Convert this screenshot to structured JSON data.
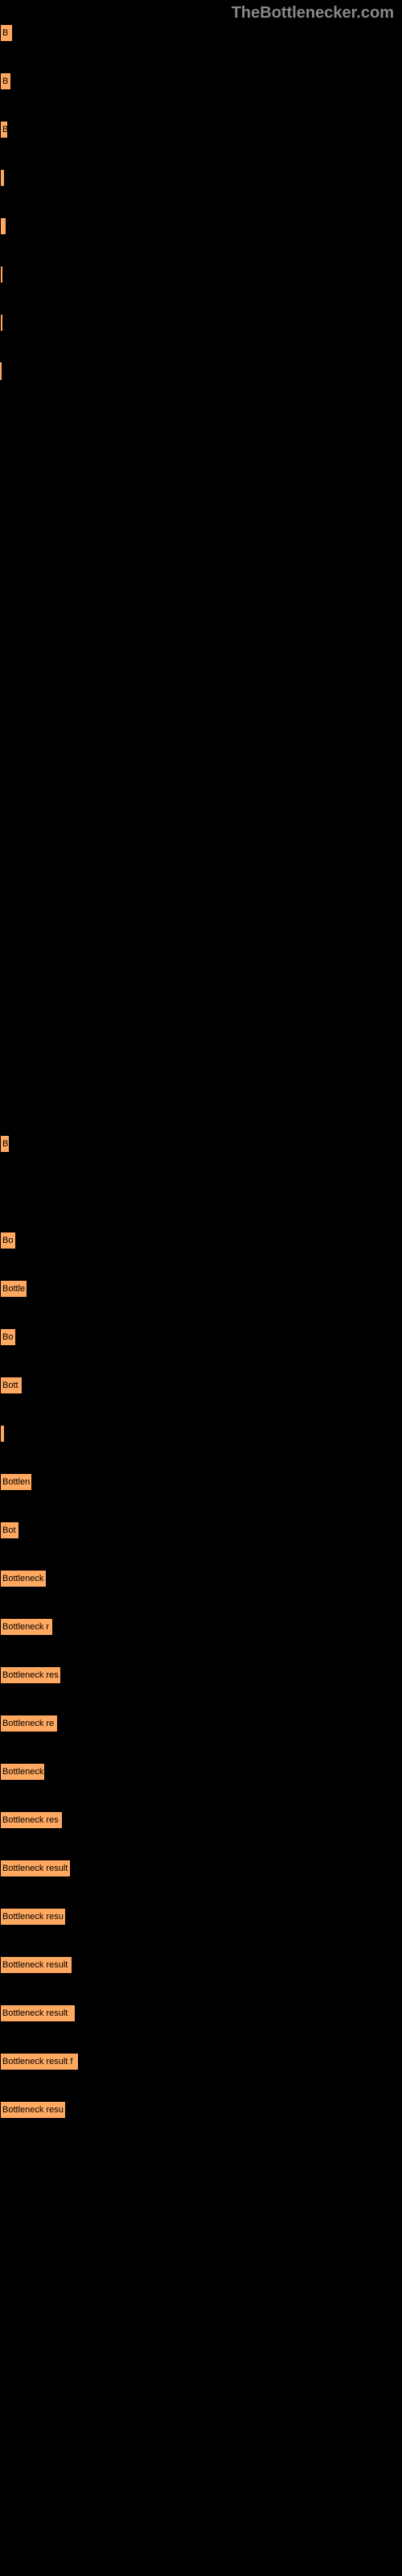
{
  "watermark": "TheBottlenecker.com",
  "chart": {
    "type": "bar",
    "bar_color": "#ffa860",
    "background_color": "#000000",
    "text_color": "#000000",
    "font_size": 11,
    "bars": [
      {
        "label": "B",
        "width": 16
      },
      {
        "label": "B",
        "width": 14
      },
      {
        "label": "B",
        "width": 10
      },
      {
        "label": "",
        "width": 6
      },
      {
        "label": "",
        "width": 8
      },
      {
        "label": "",
        "width": 4
      },
      {
        "label": "",
        "width": 4
      },
      {
        "label": "",
        "width": 2
      },
      {
        "label": "",
        "width": 1
      },
      {
        "label": "",
        "width": 1
      },
      {
        "label": "",
        "width": 1
      },
      {
        "label": "",
        "width": 1
      },
      {
        "label": "",
        "width": 1
      },
      {
        "label": "",
        "width": 1
      },
      {
        "label": "",
        "width": 1
      },
      {
        "label": "",
        "width": 1
      },
      {
        "label": "",
        "width": 1
      },
      {
        "label": "",
        "width": 1
      },
      {
        "label": "",
        "width": 1
      },
      {
        "label": "",
        "width": 1
      },
      {
        "label": "",
        "width": 1
      },
      {
        "label": "",
        "width": 1
      },
      {
        "label": "",
        "width": 1
      },
      {
        "label": "B",
        "width": 12
      },
      {
        "label": "",
        "width": 1
      },
      {
        "label": "Bo",
        "width": 20
      },
      {
        "label": "Bottle",
        "width": 34
      },
      {
        "label": "Bo",
        "width": 20
      },
      {
        "label": "Bott",
        "width": 28
      },
      {
        "label": "",
        "width": 6
      },
      {
        "label": "Bottlen",
        "width": 40
      },
      {
        "label": "Bot",
        "width": 24
      },
      {
        "label": "Bottleneck",
        "width": 58
      },
      {
        "label": "Bottleneck r",
        "width": 66
      },
      {
        "label": "Bottleneck res",
        "width": 76
      },
      {
        "label": "Bottleneck re",
        "width": 72
      },
      {
        "label": "Bottleneck",
        "width": 56
      },
      {
        "label": "Bottleneck res",
        "width": 78
      },
      {
        "label": "Bottleneck result",
        "width": 88
      },
      {
        "label": "Bottleneck resu",
        "width": 82
      },
      {
        "label": "Bottleneck result",
        "width": 90
      },
      {
        "label": "Bottleneck result",
        "width": 94
      },
      {
        "label": "Bottleneck result f",
        "width": 98
      },
      {
        "label": "Bottleneck resu",
        "width": 82
      }
    ]
  }
}
